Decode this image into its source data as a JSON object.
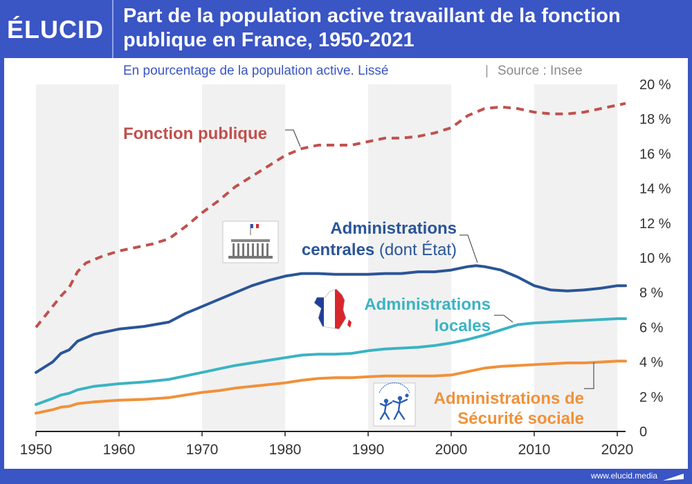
{
  "brand": {
    "logo_text": "ÉLUCID",
    "site": "www.elucid.media"
  },
  "chart_data": {
    "type": "line",
    "title": "Part de la population active travaillant de la fonction publique en France, 1950-2021",
    "subtitle": "En pourcentage de la population active. Lissé",
    "source": "Source : Insee",
    "xlim": [
      1950,
      2021
    ],
    "ylim": [
      0,
      20
    ],
    "x_ticks": [
      "1950",
      "1960",
      "1970",
      "1980",
      "1990",
      "2000",
      "2010",
      "2020"
    ],
    "y_ticks": [
      "0",
      "2 %",
      "4 %",
      "6 %",
      "8 %",
      "10 %",
      "12 %",
      "14 %",
      "16 %",
      "18 %",
      "20 %"
    ],
    "grid": "alternating vertical bands",
    "series": [
      {
        "name": "Fonction publique",
        "color": "#c0504d",
        "style": "dashed",
        "points": [
          [
            1950,
            6.0
          ],
          [
            1952,
            7.2
          ],
          [
            1953,
            7.8
          ],
          [
            1954,
            8.3
          ],
          [
            1955,
            9.2
          ],
          [
            1956,
            9.7
          ],
          [
            1958,
            10.1
          ],
          [
            1960,
            10.4
          ],
          [
            1962,
            10.6
          ],
          [
            1964,
            10.8
          ],
          [
            1966,
            11.1
          ],
          [
            1968,
            11.8
          ],
          [
            1970,
            12.6
          ],
          [
            1972,
            13.3
          ],
          [
            1974,
            14.1
          ],
          [
            1976,
            14.7
          ],
          [
            1978,
            15.3
          ],
          [
            1980,
            15.9
          ],
          [
            1982,
            16.3
          ],
          [
            1984,
            16.5
          ],
          [
            1986,
            16.5
          ],
          [
            1988,
            16.5
          ],
          [
            1990,
            16.7
          ],
          [
            1992,
            16.9
          ],
          [
            1994,
            16.9
          ],
          [
            1996,
            17.0
          ],
          [
            1998,
            17.2
          ],
          [
            2000,
            17.5
          ],
          [
            2002,
            18.2
          ],
          [
            2004,
            18.6
          ],
          [
            2006,
            18.7
          ],
          [
            2008,
            18.6
          ],
          [
            2010,
            18.4
          ],
          [
            2012,
            18.3
          ],
          [
            2014,
            18.3
          ],
          [
            2016,
            18.4
          ],
          [
            2018,
            18.6
          ],
          [
            2020,
            18.8
          ],
          [
            2021,
            18.9
          ]
        ]
      },
      {
        "name": "Administrations centrales (dont État)",
        "color": "#2a5597",
        "style": "solid",
        "points": [
          [
            1950,
            3.4
          ],
          [
            1952,
            4.0
          ],
          [
            1953,
            4.5
          ],
          [
            1954,
            4.7
          ],
          [
            1955,
            5.2
          ],
          [
            1957,
            5.6
          ],
          [
            1960,
            5.9
          ],
          [
            1963,
            6.05
          ],
          [
            1966,
            6.3
          ],
          [
            1968,
            6.8
          ],
          [
            1970,
            7.2
          ],
          [
            1972,
            7.6
          ],
          [
            1974,
            8.0
          ],
          [
            1976,
            8.4
          ],
          [
            1978,
            8.7
          ],
          [
            1980,
            8.95
          ],
          [
            1982,
            9.1
          ],
          [
            1984,
            9.1
          ],
          [
            1986,
            9.05
          ],
          [
            1988,
            9.05
          ],
          [
            1990,
            9.05
          ],
          [
            1992,
            9.1
          ],
          [
            1994,
            9.1
          ],
          [
            1996,
            9.2
          ],
          [
            1998,
            9.2
          ],
          [
            2000,
            9.3
          ],
          [
            2002,
            9.5
          ],
          [
            2003,
            9.55
          ],
          [
            2004,
            9.5
          ],
          [
            2006,
            9.3
          ],
          [
            2008,
            8.9
          ],
          [
            2010,
            8.4
          ],
          [
            2012,
            8.15
          ],
          [
            2014,
            8.1
          ],
          [
            2016,
            8.15
          ],
          [
            2018,
            8.25
          ],
          [
            2020,
            8.4
          ],
          [
            2021,
            8.4
          ]
        ]
      },
      {
        "name": "Administrations locales",
        "color": "#3bb3c3",
        "style": "solid",
        "points": [
          [
            1950,
            1.55
          ],
          [
            1952,
            1.9
          ],
          [
            1953,
            2.1
          ],
          [
            1954,
            2.2
          ],
          [
            1955,
            2.4
          ],
          [
            1957,
            2.6
          ],
          [
            1960,
            2.75
          ],
          [
            1963,
            2.85
          ],
          [
            1966,
            3.0
          ],
          [
            1968,
            3.2
          ],
          [
            1970,
            3.4
          ],
          [
            1972,
            3.6
          ],
          [
            1974,
            3.8
          ],
          [
            1976,
            3.95
          ],
          [
            1978,
            4.1
          ],
          [
            1980,
            4.25
          ],
          [
            1982,
            4.4
          ],
          [
            1984,
            4.45
          ],
          [
            1986,
            4.45
          ],
          [
            1988,
            4.5
          ],
          [
            1990,
            4.65
          ],
          [
            1992,
            4.75
          ],
          [
            1994,
            4.8
          ],
          [
            1996,
            4.85
          ],
          [
            1998,
            4.95
          ],
          [
            2000,
            5.1
          ],
          [
            2002,
            5.3
          ],
          [
            2004,
            5.55
          ],
          [
            2006,
            5.85
          ],
          [
            2008,
            6.15
          ],
          [
            2010,
            6.25
          ],
          [
            2012,
            6.3
          ],
          [
            2014,
            6.35
          ],
          [
            2016,
            6.4
          ],
          [
            2018,
            6.45
          ],
          [
            2020,
            6.5
          ],
          [
            2021,
            6.5
          ]
        ]
      },
      {
        "name": "Administrations de Sécurité sociale",
        "color": "#f0913a",
        "style": "solid",
        "points": [
          [
            1950,
            1.05
          ],
          [
            1952,
            1.25
          ],
          [
            1953,
            1.4
          ],
          [
            1954,
            1.45
          ],
          [
            1955,
            1.6
          ],
          [
            1957,
            1.7
          ],
          [
            1960,
            1.8
          ],
          [
            1963,
            1.85
          ],
          [
            1966,
            1.95
          ],
          [
            1968,
            2.1
          ],
          [
            1970,
            2.25
          ],
          [
            1972,
            2.35
          ],
          [
            1974,
            2.5
          ],
          [
            1976,
            2.6
          ],
          [
            1978,
            2.7
          ],
          [
            1980,
            2.8
          ],
          [
            1982,
            2.95
          ],
          [
            1984,
            3.05
          ],
          [
            1986,
            3.1
          ],
          [
            1988,
            3.1
          ],
          [
            1990,
            3.15
          ],
          [
            1992,
            3.2
          ],
          [
            1994,
            3.2
          ],
          [
            1996,
            3.2
          ],
          [
            1998,
            3.2
          ],
          [
            2000,
            3.25
          ],
          [
            2002,
            3.45
          ],
          [
            2004,
            3.65
          ],
          [
            2006,
            3.75
          ],
          [
            2008,
            3.8
          ],
          [
            2010,
            3.85
          ],
          [
            2012,
            3.9
          ],
          [
            2014,
            3.95
          ],
          [
            2016,
            3.95
          ],
          [
            2018,
            4.0
          ],
          [
            2020,
            4.05
          ],
          [
            2021,
            4.05
          ]
        ]
      }
    ],
    "annotations": [
      {
        "id": "fp",
        "lines": [
          {
            "bold": "Fonction publique",
            "normal": ""
          }
        ]
      },
      {
        "id": "centrales",
        "lines": [
          {
            "bold": "Administrations",
            "normal": ""
          },
          {
            "bold": "centrales",
            "normal": " (dont État)"
          }
        ]
      },
      {
        "id": "locales",
        "lines": [
          {
            "bold": "Administrations",
            "normal": ""
          },
          {
            "bold": "locales",
            "normal": ""
          }
        ]
      },
      {
        "id": "secu",
        "lines": [
          {
            "bold": "Administrations de",
            "normal": ""
          },
          {
            "bold": "Sécurité sociale",
            "normal": ""
          }
        ]
      }
    ]
  }
}
